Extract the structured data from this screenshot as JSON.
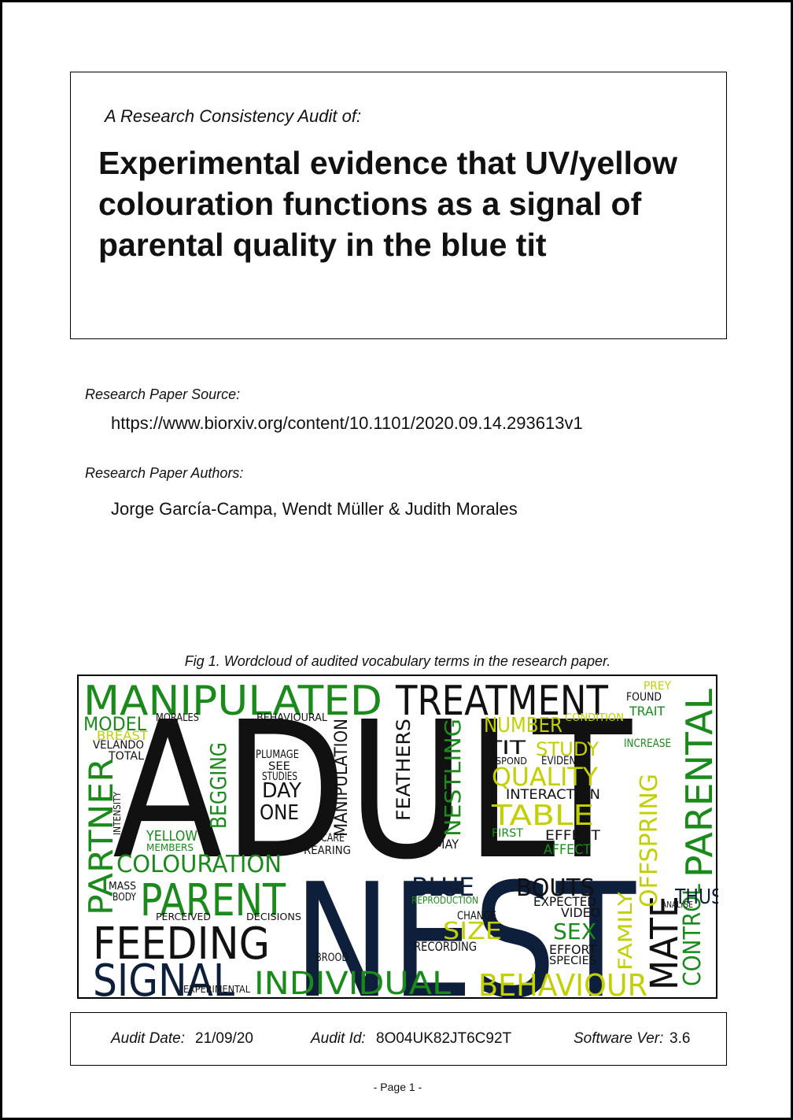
{
  "header": {
    "subtitle": "A Research Consistency Audit of:",
    "title": "Experimental evidence that UV/yellow colouration functions as a signal of parental quality in the blue tit"
  },
  "source": {
    "label": "Research Paper Source:",
    "url": "https://www.biorxiv.org/content/10.1101/2020.09.14.293613v1"
  },
  "authors": {
    "label": "Research Paper Authors:",
    "names": "Jorge García-Campa, Wendt Müller & Judith Morales"
  },
  "figure": {
    "caption": "Fig 1. Wordcloud of audited vocabulary terms in the research paper.",
    "words": [
      "MANIPULATED",
      "TREATMENT",
      "ADULT",
      "NEST",
      "PARENTAL",
      "PARTNER",
      "PARENT",
      "FEEDING",
      "SIGNAL",
      "INDIVIDUAL",
      "BEHAVIOUR",
      "MATE",
      "COLOURATION",
      "BLUE",
      "BOUTS",
      "SIZE",
      "SEX",
      "QUALITY",
      "TABLE",
      "STUDY",
      "NUMBER",
      "MODEL",
      "NESTLING",
      "FEATHERS",
      "DAY",
      "ONE",
      "MANIPULATION",
      "BEGGING",
      "OFFSPRING",
      "CONTROL",
      "FAMILY",
      "THUS",
      "TIT",
      "INTERACTION",
      "EFFECT",
      "AFFECT",
      "EXPECTED",
      "VIDEO",
      "EFFORT",
      "SPECIES",
      "RECORDING",
      "REPRODUCTION",
      "CHANGE",
      "YELLOW",
      "MEMBERS",
      "VELANDO",
      "TOTAL",
      "PLUMAGE",
      "SEE",
      "STUDIES",
      "REARING",
      "CARE",
      "MAY",
      "FIRST",
      "INCREASE",
      "EVIDENCE",
      "RESPOND",
      "BROOD",
      "EXPERIMENTAL",
      "PERCEIVED",
      "DECISIONS",
      "MASS",
      "BODY",
      "INTENSITY",
      "TRAIT",
      "FOUND",
      "PREY",
      "BEHAVIOURAL",
      "MORALES",
      "BREAST",
      "CONDITION",
      "ANALYSE"
    ]
  },
  "footer": {
    "date_label": "Audit Date:",
    "date": "21/09/20",
    "id_label": "Audit Id:",
    "id": "8O04UK82JT6C92T",
    "version_label": "Software Ver:",
    "version": "3.6"
  },
  "page": "-  Page 1  -"
}
